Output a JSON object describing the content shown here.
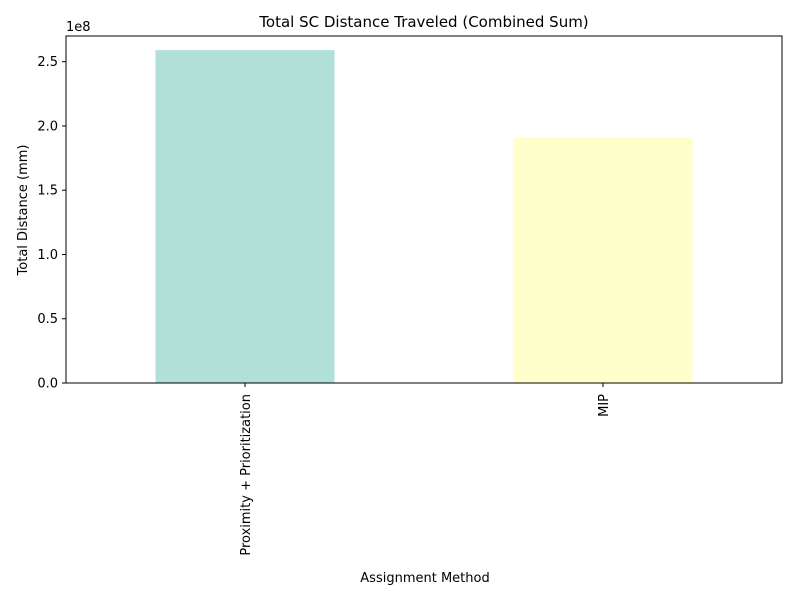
{
  "chart_data": {
    "type": "bar",
    "title": "Total SC Distance Traveled (Combined Sum)",
    "xlabel": "Assignment Method",
    "ylabel": "Total Distance (mm)",
    "categories": [
      "Proximity + Prioritization",
      "MIP"
    ],
    "values": [
      259000000,
      191000000
    ],
    "colors": [
      "#b0e0d8",
      "#ffffcc"
    ],
    "ylim": [
      0,
      270000000
    ],
    "y_ticks": [
      0,
      50000000,
      100000000,
      150000000,
      200000000,
      250000000
    ],
    "y_tick_labels": [
      "0.0",
      "0.5",
      "1.0",
      "1.5",
      "2.0",
      "2.5"
    ],
    "y_offset_label": "1e8",
    "grid": false,
    "legend": "none"
  }
}
